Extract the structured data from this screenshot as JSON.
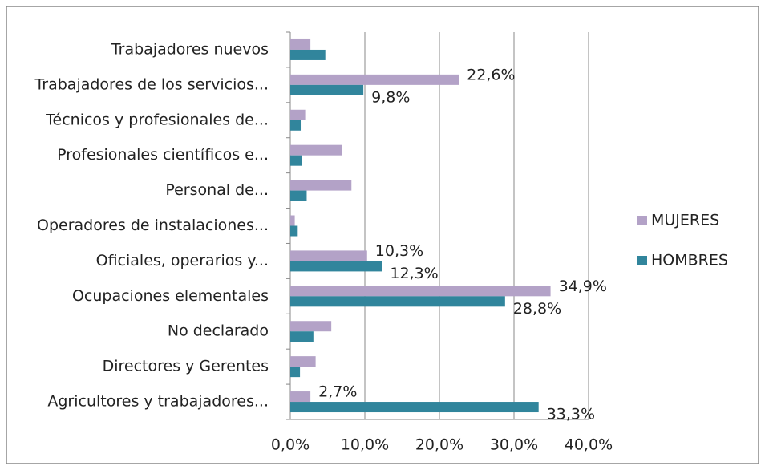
{
  "chart_data": {
    "type": "hbar",
    "categories": [
      "Trabajadores nuevos",
      "Trabajadores de los servicios...",
      "Técnicos y profesionales de...",
      "Profesionales científicos e...",
      "Personal de...",
      "Operadores de instalaciones...",
      "Oficiales, operarios y...",
      "Ocupaciones elementales",
      "No declarado",
      "Directores y Gerentes",
      "Agricultores y trabajadores..."
    ],
    "series": [
      {
        "name": "MUJERES",
        "color": "#b3a2c7",
        "values": [
          2.7,
          22.6,
          2.0,
          6.9,
          8.2,
          0.6,
          10.3,
          34.9,
          5.5,
          3.4,
          2.7
        ],
        "value_labels": [
          null,
          "22,6%",
          null,
          null,
          null,
          null,
          "10,3%",
          "34,9%",
          null,
          null,
          "2,7%"
        ]
      },
      {
        "name": "HOMBRES",
        "color": "#31859c",
        "values": [
          4.7,
          9.8,
          1.4,
          1.6,
          2.2,
          1.0,
          12.3,
          28.8,
          3.1,
          1.3,
          33.3
        ],
        "value_labels": [
          null,
          "9,8%",
          null,
          null,
          null,
          null,
          "12,3%",
          "28,8%",
          null,
          null,
          "33,3%"
        ]
      }
    ],
    "xlim": [
      0,
      40
    ],
    "xticks": [
      {
        "value": 0,
        "label": "0,0%"
      },
      {
        "value": 10,
        "label": "10,0%"
      },
      {
        "value": 20,
        "label": "20,0%"
      },
      {
        "value": 30,
        "label": "30,0%"
      },
      {
        "value": 40,
        "label": "40,0%"
      }
    ],
    "grid": true,
    "legend": "right"
  }
}
